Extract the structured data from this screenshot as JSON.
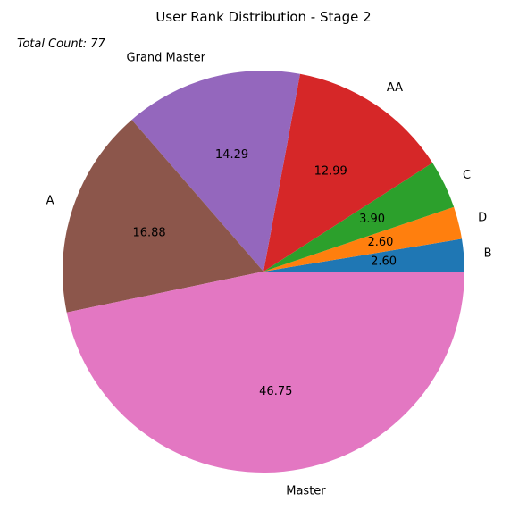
{
  "chart_data": {
    "type": "pie",
    "title": "User Rank Distribution - Stage 2",
    "annotation": "Total Count: 77",
    "value_format": "percent, 2 decimals",
    "start_angle_deg": 0,
    "direction": "counterclockwise",
    "slices": [
      {
        "label": "B",
        "value": 2.6,
        "display": "2.60",
        "color": "#1f77b4"
      },
      {
        "label": "D",
        "value": 2.6,
        "display": "2.60",
        "color": "#ff7f0e"
      },
      {
        "label": "C",
        "value": 3.9,
        "display": "3.90",
        "color": "#2ca02c"
      },
      {
        "label": "AA",
        "value": 12.99,
        "display": "12.99",
        "color": "#d62728"
      },
      {
        "label": "Grand Master",
        "value": 14.29,
        "display": "14.29",
        "color": "#9467bd"
      },
      {
        "label": "A",
        "value": 16.88,
        "display": "16.88",
        "color": "#8c564b"
      },
      {
        "label": "Master",
        "value": 46.75,
        "display": "46.75",
        "color": "#e377c2"
      }
    ]
  }
}
